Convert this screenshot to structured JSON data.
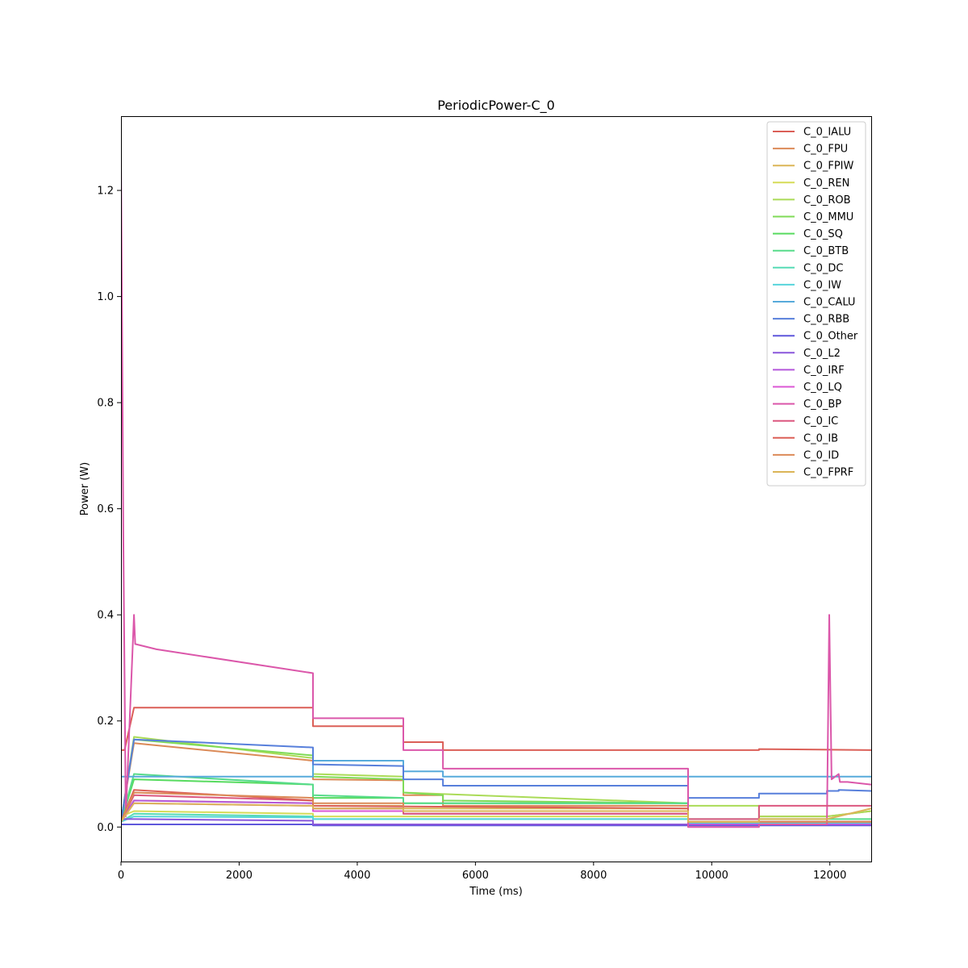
{
  "chart_data": {
    "type": "line",
    "title": "PeriodicPower-C_0",
    "xlabel": "Time (ms)",
    "ylabel": "Power (W)",
    "xlim": [
      0,
      12700
    ],
    "ylim": [
      -0.065,
      1.34
    ],
    "xticks": [
      0,
      2000,
      4000,
      6000,
      8000,
      10000,
      12000
    ],
    "yticks": [
      0.0,
      0.2,
      0.4,
      0.6,
      0.8,
      1.0,
      1.2
    ],
    "ytick_labels": [
      "0.0",
      "0.2",
      "0.4",
      "0.6",
      "0.8",
      "1.0",
      "1.2"
    ],
    "grid": false,
    "legend_position": "top-right",
    "series": [
      {
        "name": "C_0_IALU",
        "color": "#db5f57",
        "x": [
          0,
          60,
          220,
          3250,
          3250,
          4780,
          4780,
          5450,
          5450,
          10800,
          10800,
          12700
        ],
        "y": [
          0.145,
          0.145,
          0.225,
          0.225,
          0.19,
          0.19,
          0.16,
          0.16,
          0.145,
          0.145,
          0.147,
          0.145
        ]
      },
      {
        "name": "C_0_FPU",
        "color": "#db8a57",
        "x": [
          0,
          220,
          3250,
          3250,
          4780,
          4780,
          5450,
          5450,
          9600,
          9600,
          10800,
          10800,
          11950,
          12700
        ],
        "y": [
          0.01,
          0.158,
          0.125,
          0.09,
          0.088,
          0.06,
          0.06,
          0.04,
          0.04,
          0.005,
          0.005,
          0.02,
          0.02,
          0.03
        ]
      },
      {
        "name": "C_0_FPIW",
        "color": "#dbb557",
        "x": [
          0,
          220,
          3250,
          3250,
          4780,
          4780,
          9600,
          9600,
          12700
        ],
        "y": [
          0.01,
          0.05,
          0.045,
          0.04,
          0.04,
          0.035,
          0.035,
          0.01,
          0.01
        ]
      },
      {
        "name": "C_0_REN",
        "color": "#d5db57",
        "x": [
          0,
          220,
          3250,
          3250,
          9600,
          9600,
          12700
        ],
        "y": [
          0.02,
          0.03,
          0.025,
          0.02,
          0.02,
          0.01,
          0.01
        ]
      },
      {
        "name": "C_0_ROB",
        "color": "#aadb57",
        "x": [
          0,
          220,
          3250,
          3250,
          4780,
          4780,
          9600,
          9600,
          10800,
          10800,
          11950,
          12700
        ],
        "y": [
          0.01,
          0.17,
          0.13,
          0.1,
          0.095,
          0.065,
          0.045,
          0.04,
          0.04,
          0.02,
          0.02,
          0.03
        ]
      },
      {
        "name": "C_0_MMU",
        "color": "#7fdb57",
        "x": [
          0,
          220,
          3250,
          3250,
          4780,
          4780,
          5450,
          5450,
          9600,
          9600,
          12700
        ],
        "y": [
          0.01,
          0.165,
          0.135,
          0.095,
          0.09,
          0.065,
          0.06,
          0.05,
          0.045,
          0.01,
          0.01
        ]
      },
      {
        "name": "C_0_SQ",
        "color": "#57db5f",
        "x": [
          0,
          220,
          3250,
          3250,
          4780,
          4780,
          9600,
          9600,
          12700
        ],
        "y": [
          0.01,
          0.09,
          0.08,
          0.055,
          0.055,
          0.045,
          0.045,
          0.01,
          0.01
        ]
      },
      {
        "name": "C_0_BTB",
        "color": "#57db8a",
        "x": [
          0,
          220,
          3250,
          3250,
          4780,
          4780,
          9600,
          9600,
          12700
        ],
        "y": [
          0.01,
          0.1,
          0.08,
          0.06,
          0.055,
          0.045,
          0.045,
          0.015,
          0.015
        ]
      },
      {
        "name": "C_0_DC",
        "color": "#57dbb5",
        "x": [
          0,
          220,
          3250,
          3250,
          9600,
          9600,
          12700
        ],
        "y": [
          0.01,
          0.025,
          0.02,
          0.015,
          0.015,
          0.008,
          0.008
        ]
      },
      {
        "name": "C_0_IW",
        "color": "#57d5db",
        "x": [
          0,
          220,
          3250,
          3250,
          9600,
          9600,
          12700
        ],
        "y": [
          0.01,
          0.02,
          0.018,
          0.015,
          0.015,
          0.008,
          0.008
        ]
      },
      {
        "name": "C_0_CALU",
        "color": "#57aadb",
        "x": [
          0,
          60,
          3250,
          3250,
          4780,
          4780,
          5450,
          5450,
          12700
        ],
        "y": [
          0.095,
          0.095,
          0.095,
          0.125,
          0.125,
          0.105,
          0.105,
          0.095,
          0.095
        ]
      },
      {
        "name": "C_0_RBB",
        "color": "#577fdb",
        "x": [
          0,
          220,
          3250,
          3250,
          4780,
          4780,
          5450,
          5450,
          9600,
          9600,
          10800,
          10800,
          11950,
          11950,
          12150,
          12150,
          12700
        ],
        "y": [
          0.01,
          0.165,
          0.15,
          0.118,
          0.115,
          0.09,
          0.09,
          0.078,
          0.078,
          0.055,
          0.055,
          0.063,
          0.063,
          0.068,
          0.068,
          0.07,
          0.068
        ]
      },
      {
        "name": "C_0_Other",
        "color": "#5f57db",
        "x": [
          0,
          220,
          3250,
          3250,
          12700
        ],
        "y": [
          0.005,
          0.005,
          0.005,
          0.003,
          0.003
        ]
      },
      {
        "name": "C_0_L2",
        "color": "#8a57db",
        "x": [
          0,
          220,
          3250,
          3250,
          12700
        ],
        "y": [
          0.015,
          0.015,
          0.012,
          0.005,
          0.005
        ]
      },
      {
        "name": "C_0_IRF",
        "color": "#b557db",
        "x": [
          0,
          220,
          3250,
          3250,
          4780,
          4780,
          9600,
          9600,
          12700
        ],
        "y": [
          0.01,
          0.05,
          0.045,
          0.035,
          0.035,
          0.025,
          0.025,
          0.005,
          0.005
        ]
      },
      {
        "name": "C_0_LQ",
        "color": "#db57d5",
        "x": [
          0,
          220,
          3250,
          3250,
          9600,
          9600,
          12700
        ],
        "y": [
          0.01,
          0.045,
          0.04,
          0.03,
          0.03,
          0.01,
          0.01
        ]
      },
      {
        "name": "C_0_BP",
        "color": "#db57aa",
        "x": [
          0,
          40,
          80,
          220,
          240,
          600,
          3250,
          3250,
          4780,
          4780,
          5450,
          5450,
          9600,
          9600,
          10800,
          10800,
          11950,
          11990,
          12030,
          12150,
          12170,
          12300,
          12700
        ],
        "y": [
          1.27,
          0.55,
          0.02,
          0.4,
          0.345,
          0.335,
          0.29,
          0.205,
          0.205,
          0.145,
          0.145,
          0.11,
          0.11,
          0.0,
          0.0,
          0.005,
          0.005,
          0.4,
          0.09,
          0.1,
          0.085,
          0.085,
          0.08
        ]
      },
      {
        "name": "C_0_IC",
        "color": "#db577f",
        "x": [
          0,
          220,
          3250,
          3250,
          4780,
          4780,
          9600,
          9600,
          10800,
          10800,
          12700
        ],
        "y": [
          0.01,
          0.06,
          0.05,
          0.035,
          0.035,
          0.025,
          0.025,
          0.015,
          0.015,
          0.04,
          0.04
        ]
      },
      {
        "name": "C_0_IB",
        "color": "#db5f57",
        "x": [
          0,
          220,
          3250,
          3250,
          9600,
          9600,
          12700
        ],
        "y": [
          0.01,
          0.07,
          0.05,
          0.04,
          0.035,
          0.01,
          0.01
        ]
      },
      {
        "name": "C_0_ID",
        "color": "#db8a57",
        "x": [
          0,
          220,
          3250,
          3250,
          4780,
          4780,
          9600,
          9600,
          12700
        ],
        "y": [
          0.01,
          0.065,
          0.055,
          0.045,
          0.045,
          0.03,
          0.03,
          0.01,
          0.01
        ]
      },
      {
        "name": "C_0_FPRF",
        "color": "#dbb557",
        "x": [
          0,
          220,
          3250,
          3250,
          4780,
          4780,
          9600,
          9600,
          10800,
          10800,
          11950,
          12700
        ],
        "y": [
          0.01,
          0.045,
          0.04,
          0.035,
          0.035,
          0.03,
          0.03,
          0.01,
          0.01,
          0.015,
          0.015,
          0.035
        ]
      }
    ]
  }
}
